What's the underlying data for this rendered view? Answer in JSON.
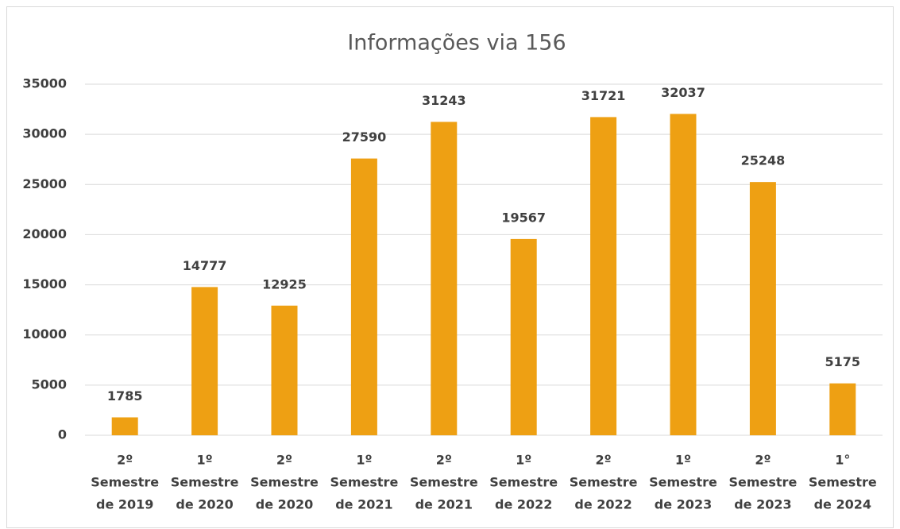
{
  "chart_data": {
    "type": "bar",
    "title": "Informações via 156",
    "categories": [
      [
        "2º",
        "Semestre",
        "de 2019"
      ],
      [
        "1º",
        "Semestre",
        "de 2020"
      ],
      [
        "2º",
        "Semestre",
        "de 2020"
      ],
      [
        "1º",
        "Semestre",
        "de 2021"
      ],
      [
        "2º",
        "Semestre",
        "de 2021"
      ],
      [
        "1º",
        "Semestre",
        "de 2022"
      ],
      [
        "2º",
        "Semestre",
        "de 2022"
      ],
      [
        "1º",
        "Semestre",
        "de 2023"
      ],
      [
        "2º",
        "Semestre",
        "de 2023"
      ],
      [
        "1°",
        "Semestre",
        "de 2024"
      ]
    ],
    "values": [
      1785,
      14777,
      12925,
      27590,
      31243,
      19567,
      31721,
      32037,
      25248,
      5175
    ],
    "color": "#eea013",
    "ylim": [
      0,
      35000
    ],
    "yticks": [
      0,
      5000,
      10000,
      15000,
      20000,
      25000,
      30000,
      35000
    ],
    "grid": true
  }
}
